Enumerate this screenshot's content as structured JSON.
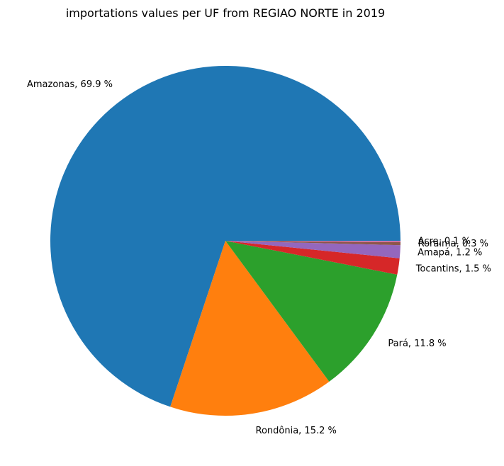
{
  "chart_data": {
    "type": "pie",
    "title": "importations values per UF from REGIAO NORTE in 2019",
    "slices": [
      {
        "label": "Amazonas",
        "value": 69.9,
        "display": "Amazonas, 69.9 %",
        "color": "#1f77b4"
      },
      {
        "label": "Rondônia",
        "value": 15.2,
        "display": "Rondônia, 15.2 %",
        "color": "#ff7f0e"
      },
      {
        "label": "Pará",
        "value": 11.8,
        "display": "Pará, 11.8 %",
        "color": "#2ca02c"
      },
      {
        "label": "Tocantins",
        "value": 1.5,
        "display": "Tocantins, 1.5 %",
        "color": "#d62728"
      },
      {
        "label": "Amapá",
        "value": 1.2,
        "display": "Amapá, 1.2 %",
        "color": "#9467bd"
      },
      {
        "label": "Roraima",
        "value": 0.3,
        "display": "Roraima, 0.3 %",
        "color": "#8c564b"
      },
      {
        "label": "Acre",
        "value": 0.1,
        "display": "Acre, 0.1 %",
        "color": "#e377c2"
      }
    ],
    "start_angle_deg": 0,
    "direction": "counterclockwise",
    "legend": "none"
  }
}
